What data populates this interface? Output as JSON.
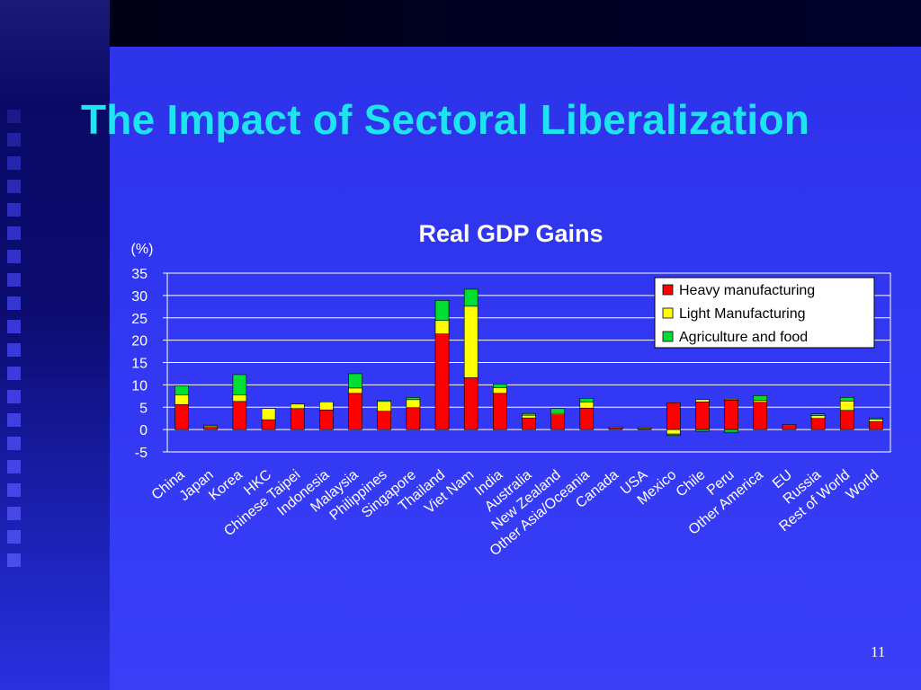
{
  "slide": {
    "title": "The Impact of Sectoral Liberalization",
    "page_number": "11"
  },
  "colors": {
    "title": "#1de4f0",
    "background": "#2f36f0",
    "heavy": "#ff0000",
    "light": "#ffff00",
    "agri": "#00dd33"
  },
  "chart_data": {
    "type": "bar",
    "stacked": true,
    "title": "Real GDP Gains",
    "ylabel": "(%)",
    "xlabel": "",
    "ylim": [
      -5,
      35
    ],
    "yticks": [
      35,
      30,
      25,
      20,
      15,
      10,
      5,
      0,
      -5
    ],
    "grid": true,
    "legend_position": "top-right",
    "categories": [
      "China",
      "Japan",
      "Korea",
      "HKC",
      "Chinese Taipei",
      "Indonesia",
      "Malaysia",
      "Philippines",
      "Singapore",
      "Thailand",
      "Viet Nam",
      "India",
      "Australia",
      "New Zealand",
      "Other Asia/Oceania",
      "Canada",
      "USA",
      "Mexico",
      "Chile",
      "Peru",
      "Other America",
      "EU",
      "Russia",
      "Rest of World",
      "World"
    ],
    "series": [
      {
        "name": "Heavy manufacturing",
        "color": "#ff0000",
        "values": [
          5.6,
          0.5,
          6.3,
          2.2,
          4.7,
          4.4,
          8.1,
          4.1,
          4.9,
          21.4,
          11.6,
          8.1,
          2.6,
          3.3,
          4.8,
          0.5,
          0.3,
          6.0,
          6.2,
          6.6,
          6.1,
          1.0,
          2.5,
          4.3,
          1.8
        ]
      },
      {
        "name": "Light Manufacturing",
        "color": "#ffff00",
        "values": [
          2.2,
          0.3,
          1.5,
          2.5,
          1.0,
          1.8,
          1.2,
          2.2,
          1.8,
          3.0,
          16.0,
          1.3,
          0.6,
          0.3,
          1.4,
          0.1,
          0.1,
          -1.0,
          0.5,
          0.2,
          0.4,
          0.1,
          0.6,
          2.1,
          0.5
        ]
      },
      {
        "name": "Agriculture and food",
        "color": "#00dd33",
        "values": [
          2.0,
          0.2,
          4.5,
          0.0,
          0.0,
          0.0,
          3.2,
          0.3,
          0.5,
          4.5,
          3.8,
          0.8,
          0.4,
          1.1,
          0.8,
          0.0,
          0.0,
          -0.3,
          -0.4,
          -0.6,
          1.1,
          0.0,
          0.4,
          0.8,
          0.3
        ]
      }
    ]
  }
}
